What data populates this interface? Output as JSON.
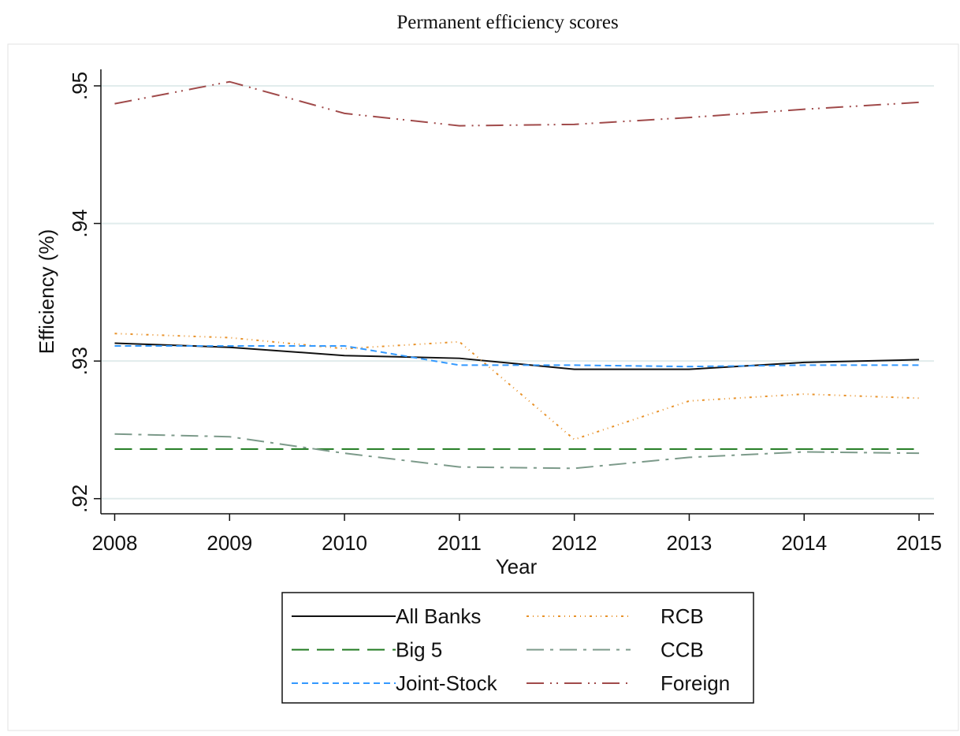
{
  "chart_data": {
    "type": "line",
    "title": "Permanent efficiency scores",
    "x_label": "Year",
    "y_label": "Efficiency (%)",
    "x": [
      2008,
      2009,
      2010,
      2011,
      2012,
      2013,
      2014,
      2015
    ],
    "xlim": [
      2007.88,
      2015.13
    ],
    "xticks": [
      2008,
      2009,
      2010,
      2011,
      2012,
      2013,
      2014,
      2015
    ],
    "ylim": [
      0.9189,
      0.9512
    ],
    "yticks": [
      {
        "value": 0.92,
        "label": ".92"
      },
      {
        "value": 0.93,
        "label": ".93"
      },
      {
        "value": 0.94,
        "label": ".94"
      },
      {
        "value": 0.95,
        "label": ".95"
      }
    ],
    "grid": true,
    "legend": "bottom",
    "series": [
      {
        "name": "All Banks",
        "color": "#111111",
        "values": [
          0.9313,
          0.931,
          0.9304,
          0.9302,
          0.9294,
          0.9294,
          0.9299,
          0.9301
        ]
      },
      {
        "name": "RCB",
        "color": "#e8922a",
        "values": [
          0.932,
          0.9317,
          0.9309,
          0.9314,
          0.9243,
          0.9271,
          0.9276,
          0.9273
        ]
      },
      {
        "name": "Big 5",
        "color": "#1f7a1f",
        "values": [
          0.9236,
          0.9236,
          0.9236,
          0.9236,
          0.9236,
          0.9236,
          0.9236,
          0.9236
        ]
      },
      {
        "name": "CCB",
        "color": "#7c9a8a",
        "values": [
          0.9247,
          0.9245,
          0.9233,
          0.9223,
          0.9222,
          0.923,
          0.9234,
          0.9233
        ]
      },
      {
        "name": "Joint-Stock",
        "color": "#3399ff",
        "values": [
          0.9311,
          0.9311,
          0.9311,
          0.9297,
          0.9297,
          0.9296,
          0.9297,
          0.9297
        ]
      },
      {
        "name": "Foreign",
        "color": "#a04a4a",
        "values": [
          0.9487,
          0.9503,
          0.948,
          0.9471,
          0.9472,
          0.9477,
          0.9483,
          0.9488
        ]
      }
    ]
  }
}
